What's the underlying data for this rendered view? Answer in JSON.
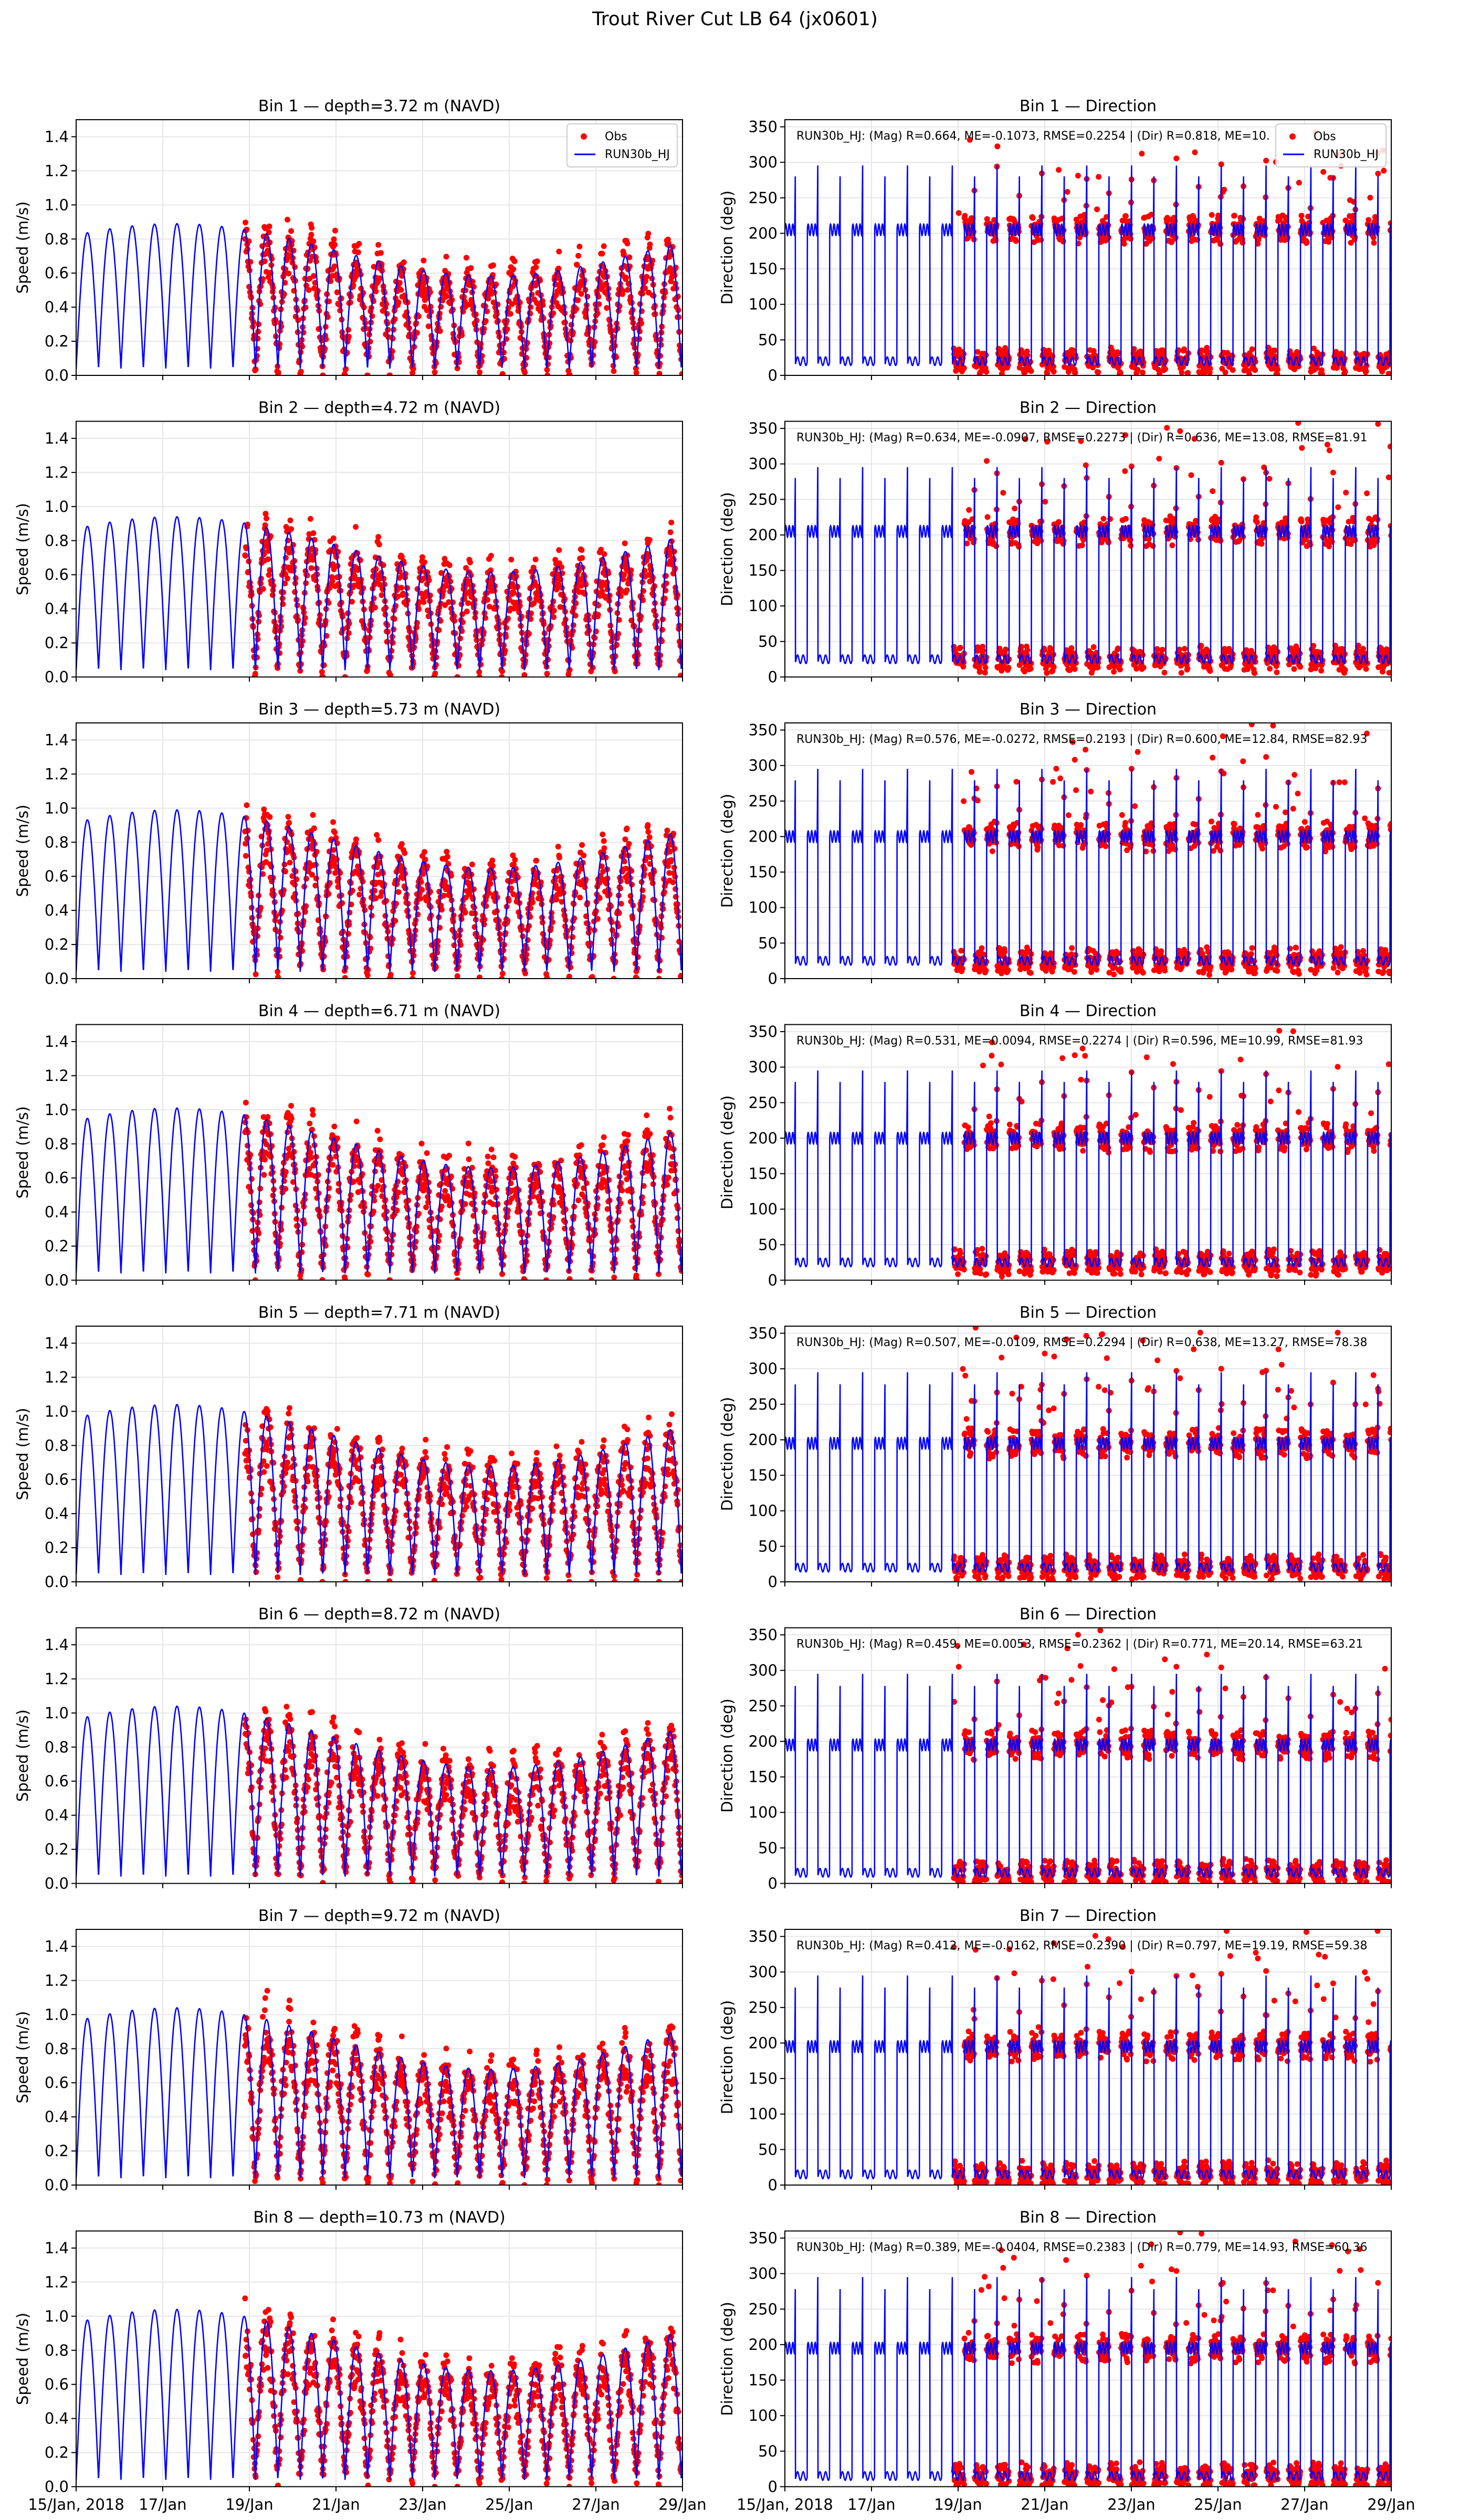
{
  "figure_title": "Trout River Cut LB 64 (jx0601)",
  "colors": {
    "obs": "#ff0000",
    "model": "#0000ff",
    "axis": "#000000",
    "grid": "#e6e6e6"
  },
  "chart_data": {
    "type": "line",
    "layout": "8 rows x 2 columns of panels",
    "x_axis": {
      "start": "15/Jan, 2018",
      "end": "29/Jan",
      "xlim_days": [
        0,
        14
      ],
      "tick_days": [
        0,
        2,
        4,
        6,
        8,
        10,
        12,
        14
      ],
      "tick_labels": [
        "15/Jan, 2018",
        "17/Jan",
        "19/Jan",
        "21/Jan",
        "23/Jan",
        "25/Jan",
        "27/Jan",
        "29/Jan"
      ]
    },
    "obs_start_day": 3.9,
    "speed_axis": {
      "ylabel": "Speed (m/s)",
      "ylim": [
        0,
        1.5
      ],
      "ticks": [
        0.0,
        0.2,
        0.4,
        0.6,
        0.8,
        1.0,
        1.2,
        1.4
      ],
      "tick_labels": [
        "0.0",
        "0.2",
        "0.4",
        "0.6",
        "0.8",
        "1.0",
        "1.2",
        "1.4"
      ]
    },
    "direction_axis": {
      "ylabel": "Direction (deg)",
      "ylim": [
        0,
        360
      ],
      "ticks": [
        0,
        50,
        100,
        150,
        200,
        250,
        300,
        350
      ],
      "tick_labels": [
        "0",
        "50",
        "100",
        "150",
        "200",
        "250",
        "300",
        "350"
      ]
    },
    "legend": {
      "placement": "top-right",
      "entries": [
        {
          "name": "Obs",
          "style": "red dots"
        },
        {
          "name": "RUN30b_HJ",
          "style": "blue line"
        }
      ]
    },
    "series": [
      {
        "name": "Obs",
        "kind": "observations (scatter)"
      },
      {
        "name": "RUN30b_HJ",
        "kind": "model (line)"
      }
    ],
    "panels": [
      {
        "bin": 1,
        "speed_title": "Bin 1 — depth=3.72 m (NAVD)",
        "dir_title": "Bin 1 — Direction",
        "stats": "RUN30b_HJ: (Mag) R=0.664, ME=-0.1073, RMSE=0.2254 | (Dir) R=0.818, ME=10.",
        "R_mag": 0.664,
        "ME_mag": -0.1073,
        "RMSE_mag": 0.2254,
        "R_dir": 0.818,
        "obs_mean_speed": 0.55,
        "model_peak_speed": 0.85,
        "dir_flood": 205,
        "dir_ebb": 20
      },
      {
        "bin": 2,
        "speed_title": "Bin 2 — depth=4.72 m (NAVD)",
        "dir_title": "Bin 2 — Direction",
        "stats": "RUN30b_HJ: (Mag) R=0.634, ME=-0.0907, RMSE=0.2273 | (Dir) R=0.636, ME=13.08, RMSE=81.91",
        "R_mag": 0.634,
        "ME_mag": -0.0907,
        "RMSE_mag": 0.2273,
        "R_dir": 0.636,
        "ME_dir": 13.08,
        "RMSE_dir": 81.91,
        "obs_mean_speed": 0.5,
        "model_peak_speed": 0.9,
        "dir_flood": 205,
        "dir_ebb": 25
      },
      {
        "bin": 3,
        "speed_title": "Bin 3 — depth=5.73 m (NAVD)",
        "dir_title": "Bin 3 — Direction",
        "stats": "RUN30b_HJ: (Mag) R=0.576, ME=-0.0272, RMSE=0.2193 | (Dir) R=0.600, ME=12.84, RMSE=82.93",
        "R_mag": 0.576,
        "ME_mag": -0.0272,
        "RMSE_mag": 0.2193,
        "R_dir": 0.6,
        "ME_dir": 12.84,
        "RMSE_dir": 82.93,
        "obs_mean_speed": 0.45,
        "model_peak_speed": 0.95,
        "dir_flood": 200,
        "dir_ebb": 25
      },
      {
        "bin": 4,
        "speed_title": "Bin 4 — depth=6.71 m (NAVD)",
        "dir_title": "Bin 4 — Direction",
        "stats": "RUN30b_HJ: (Mag) R=0.531, ME=0.0094, RMSE=0.2274 | (Dir) R=0.596, ME=10.99, RMSE=81.93",
        "R_mag": 0.531,
        "ME_mag": 0.0094,
        "RMSE_mag": 0.2274,
        "R_dir": 0.596,
        "ME_dir": 10.99,
        "RMSE_dir": 81.93,
        "obs_mean_speed": 0.45,
        "model_peak_speed": 0.97,
        "dir_flood": 200,
        "dir_ebb": 25
      },
      {
        "bin": 5,
        "speed_title": "Bin 5 — depth=7.71 m (NAVD)",
        "dir_title": "Bin 5 — Direction",
        "stats": "RUN30b_HJ: (Mag) R=0.507, ME=-0.0109, RMSE=0.2294 | (Dir) R=0.638, ME=13.27, RMSE=78.38",
        "R_mag": 0.507,
        "ME_mag": -0.0109,
        "RMSE_mag": 0.2294,
        "R_dir": 0.638,
        "ME_dir": 13.27,
        "RMSE_dir": 78.38,
        "obs_mean_speed": 0.42,
        "model_peak_speed": 1.0,
        "dir_flood": 195,
        "dir_ebb": 20
      },
      {
        "bin": 6,
        "speed_title": "Bin 6 — depth=8.72 m (NAVD)",
        "dir_title": "Bin 6 — Direction",
        "stats": "RUN30b_HJ: (Mag) R=0.459, ME=0.0053, RMSE=0.2362 | (Dir) R=0.771, ME=20.14, RMSE=63.21",
        "R_mag": 0.459,
        "ME_mag": 0.0053,
        "RMSE_mag": 0.2362,
        "R_dir": 0.771,
        "ME_dir": 20.14,
        "RMSE_dir": 63.21,
        "obs_mean_speed": 0.4,
        "model_peak_speed": 1.0,
        "dir_flood": 195,
        "dir_ebb": 15
      },
      {
        "bin": 7,
        "speed_title": "Bin 7 — depth=9.72 m (NAVD)",
        "dir_title": "Bin 7 — Direction",
        "stats": "RUN30b_HJ: (Mag) R=0.412, ME=-0.0162, RMSE=0.2390 | (Dir) R=0.797, ME=19.19, RMSE=59.38",
        "R_mag": 0.412,
        "ME_mag": -0.0162,
        "RMSE_mag": 0.239,
        "R_dir": 0.797,
        "ME_dir": 19.19,
        "RMSE_dir": 59.38,
        "obs_mean_speed": 0.4,
        "model_peak_speed": 1.0,
        "dir_flood": 195,
        "dir_ebb": 15
      },
      {
        "bin": 8,
        "speed_title": "Bin 8 — depth=10.73 m (NAVD)",
        "dir_title": "Bin 8 — Direction",
        "stats": "RUN30b_HJ: (Mag) R=0.389, ME=-0.0404, RMSE=0.2383 | (Dir) R=0.779, ME=14.93, RMSE=60.36",
        "R_mag": 0.389,
        "ME_mag": -0.0404,
        "RMSE_mag": 0.2383,
        "R_dir": 0.779,
        "ME_dir": 14.93,
        "RMSE_dir": 60.36,
        "obs_mean_speed": 0.38,
        "model_peak_speed": 1.0,
        "dir_flood": 195,
        "dir_ebb": 15
      }
    ]
  }
}
